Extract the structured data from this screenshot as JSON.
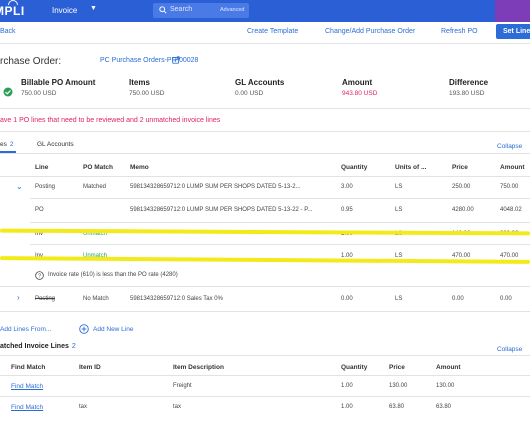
{
  "header": {
    "logo": "MPLI",
    "app_menu": "Invoice",
    "search_placeholder": "Search",
    "search_advanced": "Advanced"
  },
  "actions": {
    "back": "Back",
    "create_template": "Create Template",
    "change_add_po": "Change/Add Purchase Order",
    "refresh_po": "Refresh PO",
    "set_lines": "Set Lines"
  },
  "po": {
    "title": "rchase Order:",
    "link": "PC Purchase Orders-PR-00028"
  },
  "summary": [
    {
      "label": "Billable PO Amount",
      "value": "750.00 USD",
      "color": "#555555"
    },
    {
      "label": "Items",
      "value": "750.00 USD",
      "color": "#555555"
    },
    {
      "label": "GL Accounts",
      "value": "0.00 USD",
      "color": "#555555"
    },
    {
      "label": "Amount",
      "value": "943.80 USD",
      "color": "#e0245e"
    },
    {
      "label": "Difference",
      "value": "193.80 USD",
      "color": "#555555"
    }
  ],
  "alert": "ave 1 PO lines that need to be reviewed and 2 unmatched invoice lines",
  "tabs": [
    {
      "label": "es",
      "count": "2"
    },
    {
      "label": "GL Accounts",
      "count": ""
    }
  ],
  "collapse_label": "Collapse",
  "lines_table": {
    "columns": [
      "Line",
      "PO Match",
      "Memo",
      "Quantity",
      "Units of ...",
      "Price",
      "Amount"
    ],
    "rows": [
      {
        "line": "Posting",
        "match": "Matched",
        "memo": "598134328659712:0 LUMP SUM PER SHOPS DATED 5-13-2...",
        "qty": "3.00",
        "units": "LS",
        "price": "250.00",
        "amount": "750.00"
      },
      {
        "line": "PO",
        "match": "",
        "memo": "598134328659712:0 LUMP SUM PER SHOPS DATED 5-13-22 - P...",
        "qty": "0.95",
        "units": "LS",
        "price": "4280.00",
        "amount": "4048.02"
      },
      {
        "line": "Inv",
        "match": "Unmatch",
        "memo": "",
        "qty": "2.00",
        "units": "LS",
        "price": "140.00",
        "amount": "280.00"
      },
      {
        "line": "Inv",
        "match": "Unmatch",
        "memo": "",
        "qty": "1.00",
        "units": "LS",
        "price": "470.00",
        "amount": "470.00"
      },
      {
        "line": "Posting",
        "match": "No Match",
        "memo": "598134328659712:0 Sales Tax 0%",
        "qty": "0.00",
        "units": "LS",
        "price": "0.00",
        "amount": "0.00"
      }
    ],
    "note": "Invoice rate (610) is less than the PO rate (4280)"
  },
  "add_lines": {
    "add_from": "Add Lines From...",
    "add_new": "Add New Line"
  },
  "unmatched": {
    "title": "atched Invoice Lines",
    "count": "2",
    "collapse": "Collapse",
    "columns": [
      "Find Match",
      "Item ID",
      "Item Description",
      "Quantity",
      "Price",
      "Amount"
    ],
    "rows": [
      {
        "find": "Find Match",
        "item_id": "",
        "desc": "Freight",
        "qty": "1.00",
        "price": "130.00",
        "amount": "130.00"
      },
      {
        "find": "Find Match",
        "item_id": "tax",
        "desc": "tax",
        "qty": "1.00",
        "price": "63.80",
        "amount": "63.80"
      }
    ]
  },
  "colors": {
    "brand": "#2b5fd6",
    "link": "#2b6cd6",
    "alert": "#e0245e",
    "highlight": "#f3ea1a"
  }
}
